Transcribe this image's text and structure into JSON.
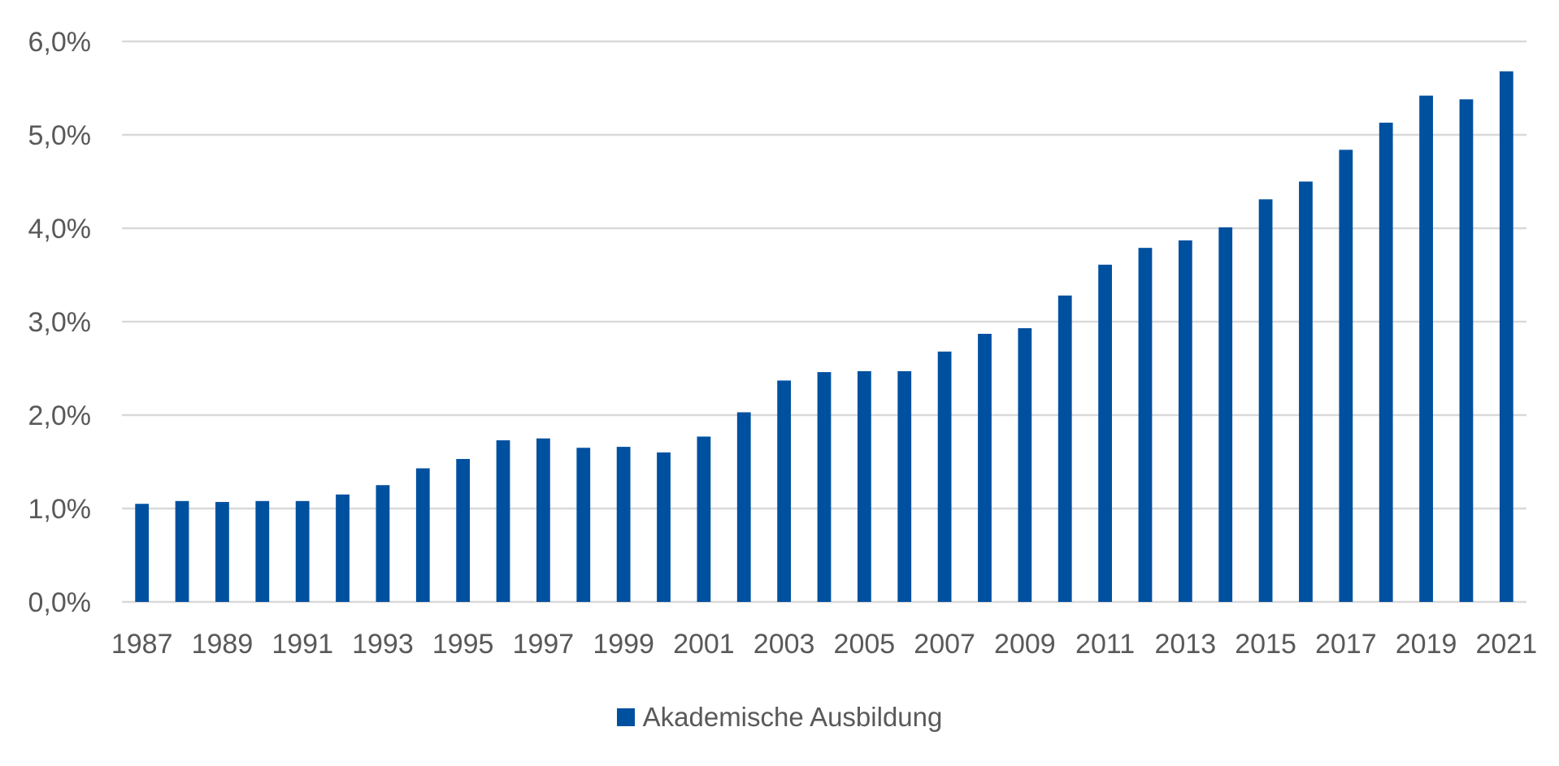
{
  "chart_data": {
    "type": "bar",
    "categories": [
      "1987",
      "1988",
      "1989",
      "1990",
      "1991",
      "1992",
      "1993",
      "1994",
      "1995",
      "1996",
      "1997",
      "1998",
      "1999",
      "2000",
      "2001",
      "2002",
      "2003",
      "2004",
      "2005",
      "2006",
      "2007",
      "2008",
      "2009",
      "2010",
      "2011",
      "2012",
      "2013",
      "2014",
      "2015",
      "2016",
      "2017",
      "2018",
      "2019",
      "2020",
      "2021"
    ],
    "x_tick_labels": [
      "1987",
      "1989",
      "1991",
      "1993",
      "1995",
      "1997",
      "1999",
      "2001",
      "2003",
      "2005",
      "2007",
      "2009",
      "2011",
      "2013",
      "2015",
      "2017",
      "2019",
      "2021"
    ],
    "series": [
      {
        "name": "Akademische Ausbildung",
        "color": "#0050a0",
        "values": [
          1.05,
          1.08,
          1.07,
          1.08,
          1.08,
          1.15,
          1.25,
          1.43,
          1.53,
          1.73,
          1.75,
          1.65,
          1.66,
          1.6,
          1.77,
          2.03,
          2.37,
          2.46,
          2.47,
          2.47,
          2.68,
          2.87,
          2.93,
          3.28,
          3.61,
          3.79,
          3.87,
          4.01,
          4.31,
          4.5,
          4.84,
          5.13,
          5.42,
          5.38,
          5.68
        ]
      }
    ],
    "y_ticks": [
      0,
      1,
      2,
      3,
      4,
      5,
      6
    ],
    "y_tick_labels": [
      "0,0%",
      "1,0%",
      "2,0%",
      "3,0%",
      "4,0%",
      "5,0%",
      "6,0%"
    ],
    "ylim": [
      0,
      6
    ],
    "title": "",
    "xlabel": "",
    "ylabel": "",
    "grid": true,
    "legend_position": "bottom-center",
    "gridline_color": "#d9d9d9",
    "tick_label_color": "#595959"
  }
}
